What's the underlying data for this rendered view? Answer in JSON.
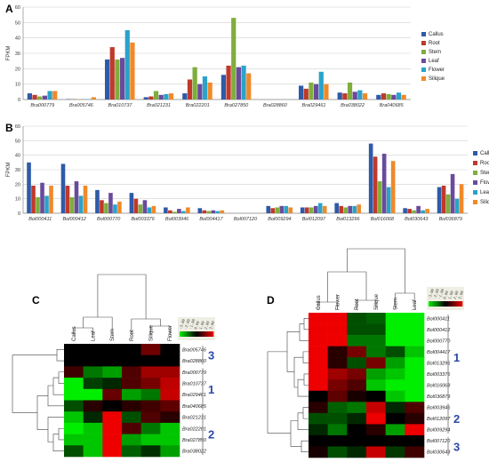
{
  "colors": {
    "callus": "#2e5aa8",
    "root": "#c0392b",
    "stem": "#7fae3b",
    "leaf": "#6a4a9c",
    "flower": "#2aa3c9",
    "silique": "#f0892a",
    "grid": "#d0d0d0",
    "heat_low": "#00ee00",
    "heat_mid": "#000000",
    "heat_high": "#ee0000",
    "cluster_label": "#2b4aa8"
  },
  "chart_data": [
    {
      "panel": "A",
      "type": "bar",
      "ylabel": "FPKM",
      "ylim": [
        0,
        60
      ],
      "yticks": [
        0,
        10,
        20,
        30,
        40,
        50,
        60
      ],
      "grid": true,
      "legend_position": "right",
      "categories": [
        "Bra000779",
        "Bra005746",
        "Bra010737",
        "Bra021231",
        "Bra022201",
        "Bra027850",
        "Bra028860",
        "Bra029461",
        "Bra038022",
        "Bra040685"
      ],
      "series": [
        {
          "name": "Callus",
          "color_key": "callus",
          "values": [
            4,
            0.3,
            26,
            1.5,
            4,
            16,
            0,
            9,
            4.5,
            3
          ]
        },
        {
          "name": "Root",
          "color_key": "root",
          "values": [
            3,
            0.2,
            34,
            2,
            13,
            22,
            0,
            7,
            4,
            4
          ]
        },
        {
          "name": "Stem",
          "color_key": "stem",
          "values": [
            2,
            0.1,
            26,
            5.5,
            21,
            53,
            0,
            11,
            11,
            3.5
          ]
        },
        {
          "name": "Leaf",
          "color_key": "leaf",
          "values": [
            2.5,
            0.1,
            27,
            3,
            10,
            21,
            0,
            10,
            5,
            3
          ]
        },
        {
          "name": "Flower",
          "color_key": "flower",
          "values": [
            5.5,
            0.2,
            45,
            3.5,
            15,
            22,
            0,
            18,
            6,
            4.5
          ]
        },
        {
          "name": "Silique",
          "color_key": "silique",
          "values": [
            5.5,
            1.5,
            37,
            4,
            11,
            17,
            0,
            10,
            4,
            3
          ]
        }
      ]
    },
    {
      "panel": "B",
      "type": "bar",
      "ylabel": "FPKM",
      "ylim": [
        0,
        60
      ],
      "yticks": [
        0,
        10,
        20,
        30,
        40,
        50,
        60
      ],
      "grid": true,
      "legend_position": "right",
      "categories": [
        "Bol000411",
        "Bol000412",
        "Bol000770",
        "Bol003376",
        "Bol003946",
        "Bol004417",
        "Bol007120",
        "Bol009294",
        "Bol012097",
        "Bol013296",
        "Bol016068",
        "Bol030643",
        "Bol036879"
      ],
      "series": [
        {
          "name": "Callus",
          "color_key": "callus",
          "values": [
            35,
            34,
            16,
            14,
            4,
            3.5,
            0,
            5,
            4,
            7,
            48,
            3.5,
            18
          ]
        },
        {
          "name": "Root",
          "color_key": "root",
          "values": [
            19,
            19,
            9,
            10,
            2,
            2,
            0,
            3.5,
            4,
            5,
            39,
            3,
            19
          ]
        },
        {
          "name": "Stem",
          "color_key": "stem",
          "values": [
            11,
            11,
            7,
            6,
            1,
            1.5,
            0,
            4,
            4,
            4,
            22,
            2,
            13
          ]
        },
        {
          "name": "Flower",
          "color_key": "leaf",
          "values": [
            21,
            22,
            14,
            9,
            3,
            2,
            0,
            5,
            5,
            5,
            41,
            5,
            27
          ]
        },
        {
          "name": "Leaf",
          "color_key": "flower",
          "values": [
            12,
            12,
            6,
            4,
            1.5,
            1.5,
            0,
            5,
            7,
            5,
            18,
            2,
            10
          ]
        },
        {
          "name": "Silique",
          "color_key": "silique",
          "values": [
            19,
            19,
            8,
            5,
            4,
            2,
            0,
            4,
            5,
            6,
            36,
            3,
            20
          ]
        }
      ]
    },
    {
      "panel": "C",
      "type": "heatmap",
      "columns": [
        "Callus",
        "Leaf",
        "Stem",
        "Root",
        "Silique",
        "Flower"
      ],
      "scale_labels": [
        "-3.00",
        "-2.00",
        "-1.00",
        "0.00",
        "1.00",
        "2.00",
        "3.00"
      ],
      "rows": [
        {
          "label": "Bra005746",
          "values": [
            0,
            0,
            0,
            0,
            1.4,
            0
          ]
        },
        {
          "label": "Bra028860",
          "values": [
            0,
            0,
            0,
            0,
            0,
            0
          ]
        },
        {
          "label": "Bra000779",
          "values": [
            0.8,
            -1.5,
            -2,
            1,
            2,
            2
          ]
        },
        {
          "label": "Bra010737",
          "values": [
            -3,
            -0.8,
            -0.5,
            1,
            1.5,
            2.4
          ]
        },
        {
          "label": "Bra029461",
          "values": [
            -3,
            -3,
            1.3,
            -2,
            -1.5,
            2.5
          ]
        },
        {
          "label": "Bra040685",
          "values": [
            -1,
            0.5,
            0,
            0.5,
            0.8,
            1.2
          ]
        },
        {
          "label": "Bra021231",
          "values": [
            -2.5,
            -0.5,
            3,
            -1,
            1,
            0.5
          ]
        },
        {
          "label": "Bra022201",
          "values": [
            -3,
            -2.5,
            3,
            1,
            -1.5,
            -2.5
          ]
        },
        {
          "label": "Bra027850",
          "values": [
            -2.5,
            -2.5,
            3,
            -2,
            -2.5,
            -2.5
          ]
        },
        {
          "label": "Bra038022",
          "values": [
            -1,
            -2.5,
            3,
            -1.2,
            -0.6,
            -2
          ]
        }
      ],
      "clusters": [
        "3",
        "1",
        "2"
      ]
    },
    {
      "panel": "D",
      "type": "heatmap",
      "columns": [
        "Callus",
        "Flower",
        "Root",
        "Silique",
        "Stem",
        "Leaf"
      ],
      "scale_labels": [
        "-3.00",
        "-2.00",
        "-1.00",
        "0.00",
        "1.00",
        "2.00",
        "3.00"
      ],
      "rows": [
        {
          "label": "Bol000411",
          "values": [
            3,
            3,
            -1,
            -1.2,
            -3,
            -3
          ]
        },
        {
          "label": "Bol000412",
          "values": [
            3,
            3,
            -1,
            -1,
            -3,
            -3
          ]
        },
        {
          "label": "Bol000770",
          "values": [
            3,
            3,
            -1.5,
            -1.5,
            -3,
            -3
          ]
        },
        {
          "label": "Bol004417",
          "values": [
            3,
            0.5,
            1.5,
            -1.5,
            -1,
            -2.5
          ]
        },
        {
          "label": "Bol013296",
          "values": [
            3,
            0.5,
            -1,
            1.5,
            -2,
            -3
          ]
        },
        {
          "label": "Bol003376",
          "values": [
            3,
            2,
            1.5,
            -2,
            -2.5,
            -3
          ]
        },
        {
          "label": "Bol016068",
          "values": [
            3,
            1.5,
            1,
            -2.5,
            -3,
            -3
          ]
        },
        {
          "label": "Bol036879",
          "values": [
            0,
            1.2,
            0.3,
            0,
            -2.5,
            -3
          ]
        },
        {
          "label": "Bol003946",
          "values": [
            0.5,
            -1.2,
            -1.5,
            2.5,
            -0.5,
            1
          ]
        },
        {
          "label": "Bol012097",
          "values": [
            -1,
            -1,
            -0.5,
            3,
            0,
            0.5
          ]
        },
        {
          "label": "Bol009294",
          "values": [
            -0.5,
            -1.5,
            0,
            0.5,
            -2,
            3
          ]
        },
        {
          "label": "Bol007120",
          "values": [
            0,
            0,
            0,
            0,
            0,
            0
          ]
        },
        {
          "label": "Bol030643",
          "values": [
            0.3,
            -1,
            -0.5,
            2.5,
            -0.7,
            0.8
          ]
        }
      ],
      "clusters": [
        "1",
        "2",
        "3"
      ]
    }
  ]
}
